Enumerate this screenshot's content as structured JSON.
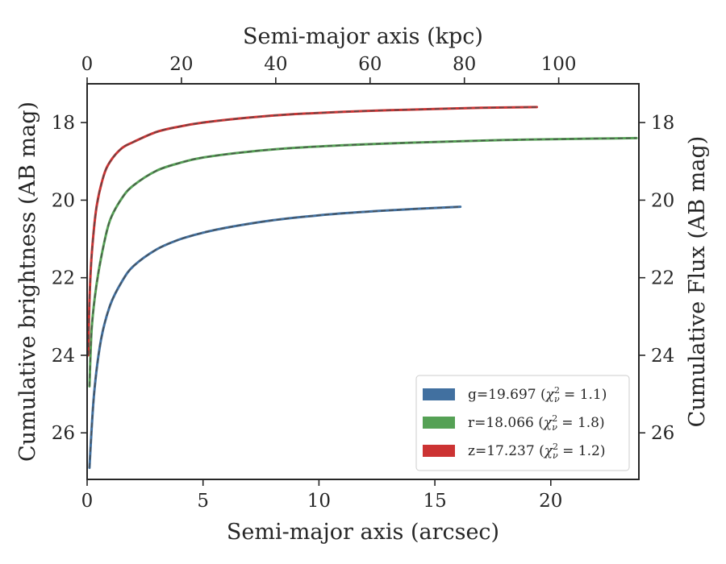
{
  "chart_data": {
    "type": "line",
    "title": "",
    "xlabel": "Semi-major axis (arcsec)",
    "ylabel": "Cumulative brightness (AB mag)",
    "top_xlabel": "Semi-major axis (kpc)",
    "right_ylabel": "Cumulative Flux (AB mag)",
    "xlim": [
      0,
      23.8
    ],
    "ylim": [
      27.2,
      17.0
    ],
    "y_inverted": true,
    "top_xlim": [
      0,
      117
    ],
    "xticks": [
      "0",
      "5",
      "10",
      "15",
      "20"
    ],
    "yticks": [
      "18",
      "20",
      "22",
      "24",
      "26"
    ],
    "top_xticks": [
      "0",
      "20",
      "40",
      "60",
      "80",
      "100"
    ],
    "grid": false,
    "legend_position": "lower-right",
    "series": [
      {
        "name": "g=19.697 ($\\chi^2_\\nu = 1.1$)",
        "legend_text": "g=19.697 (",
        "color": "#4170a0",
        "model_line": "dashed",
        "x": [
          0.1,
          0.3,
          0.6,
          1,
          1.5,
          2,
          3,
          4,
          5,
          6,
          8,
          10,
          12,
          14,
          16.1
        ],
        "y": [
          26.9,
          25.0,
          23.6,
          22.7,
          22.1,
          21.7,
          21.27,
          21.01,
          20.84,
          20.71,
          20.52,
          20.39,
          20.3,
          20.23,
          20.17
        ]
      },
      {
        "name": "r=18.066 ($\\chi^2_\\nu = 1.8$)",
        "legend_text": "r=18.066 (",
        "color": "#55a155",
        "model_line": "dashed",
        "x": [
          0.1,
          0.2,
          0.4,
          0.7,
          1,
          1.5,
          2,
          3,
          4,
          5,
          7,
          9,
          12,
          15,
          18,
          21,
          23.7
        ],
        "y": [
          24.8,
          23.3,
          22.2,
          21.2,
          20.5,
          19.95,
          19.62,
          19.24,
          19.04,
          18.9,
          18.75,
          18.65,
          18.56,
          18.5,
          18.45,
          18.42,
          18.4
        ]
      },
      {
        "name": "z=17.237 ($\\chi^2_\\nu = 1.2$)",
        "legend_text": "z=17.237 (",
        "color": "#cc3333",
        "model_line": "dashed",
        "x": [
          0.05,
          0.1,
          0.2,
          0.4,
          0.7,
          1,
          1.5,
          2,
          3,
          4,
          5,
          7,
          9,
          12,
          15,
          17,
          19.4
        ],
        "y": [
          24.0,
          22.6,
          21.4,
          20.2,
          19.4,
          19.0,
          18.66,
          18.5,
          18.24,
          18.1,
          18.0,
          17.87,
          17.78,
          17.7,
          17.65,
          17.62,
          17.6
        ]
      }
    ],
    "legend_chi": [
      {
        "sym": "χ",
        "sup": "2",
        "sub": "ν",
        "rest": " = 1.1)"
      },
      {
        "sym": "χ",
        "sup": "2",
        "sub": "ν",
        "rest": " = 1.8)"
      },
      {
        "sym": "χ",
        "sup": "2",
        "sub": "ν",
        "rest": " = 1.2)"
      }
    ]
  }
}
